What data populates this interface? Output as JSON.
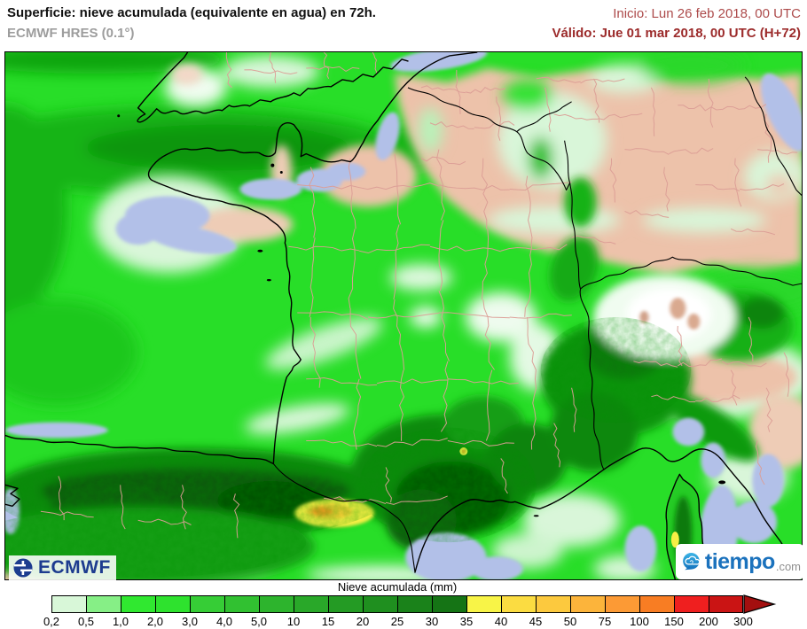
{
  "header": {
    "title": "Superficie: nieve acumulada (equivalente en agua) en 72h.",
    "model": "ECMWF HRES (0.1°)",
    "init": "Inicio: Lun 26 feb 2018, 00 UTC",
    "valid": "Válido: Jue 01 mar 2018, 00 UTC (H+72)",
    "title_color": "#111111",
    "model_color": "#9d9d9d",
    "init_color": "#ad4b4b",
    "valid_color": "#9c2b2b"
  },
  "branding": {
    "ecmwf_label": "ECMWF",
    "ecmwf_color": "#1d3c8f",
    "tiempo_label": "tiempo",
    "tiempo_suffix": ".com",
    "tiempo_color": "#1b72bd"
  },
  "map": {
    "variable": "Nieve acumulada (equivalente en agua) en 72h",
    "region": "Francia y alrededores",
    "sea_color": "#b2c0e8",
    "land_no_snow_color": "#edc2aa",
    "snow_base_color": "#28de28",
    "region_border_color": "#dc9e96",
    "coast_color": "#000000",
    "relief_dark_color": "#0a6e0a",
    "max_values_color": "#f7ef45"
  },
  "legend": {
    "title": "Nieve acumulada (mm)",
    "ticks": [
      "0,2",
      "0,5",
      "1,0",
      "2,0",
      "3,0",
      "4,0",
      "5,0",
      "10",
      "15",
      "20",
      "25",
      "30",
      "35",
      "40",
      "45",
      "50",
      "75",
      "100",
      "150",
      "200",
      "300"
    ],
    "cell_colors": [
      "#d8f7d8",
      "#86ef86",
      "#30e830",
      "#2ee22e",
      "#36cd36",
      "#31c131",
      "#2db42d",
      "#29a829",
      "#249b24",
      "#1f8f1f",
      "#1a821a",
      "#157415",
      "#f8f447",
      "#fbdc41",
      "#fcc93e",
      "#fcb43b",
      "#fc9a35",
      "#f87d23",
      "#ef1f1f",
      "#ca1414"
    ],
    "arrow_color": "#a30f0f"
  }
}
